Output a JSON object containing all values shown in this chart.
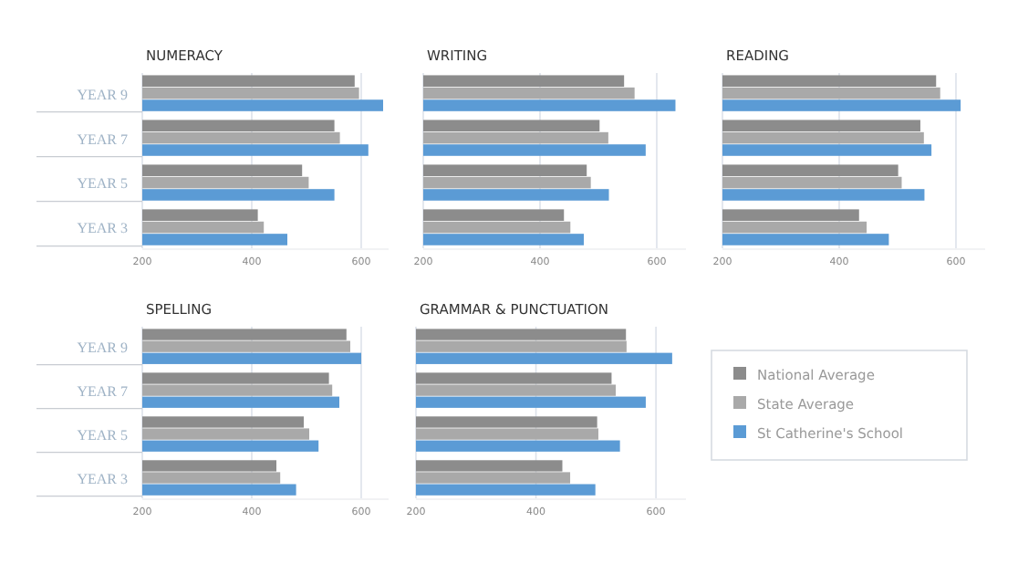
{
  "chart_data": [
    {
      "type": "bar",
      "orientation": "horizontal",
      "title": "NUMERACY",
      "categories": [
        "YEAR 9",
        "YEAR 7",
        "YEAR 5",
        "YEAR 3"
      ],
      "xlim": [
        200,
        650
      ],
      "xticks": [
        200,
        400,
        600
      ],
      "grid": "x",
      "series": [
        {
          "color": "#8c8c8c",
          "values": [
            588,
            551,
            492,
            411
          ]
        },
        {
          "color": "#a9a9a9",
          "values": [
            596,
            561,
            504,
            422
          ]
        },
        {
          "color": "#5b9bd5",
          "values": [
            640,
            613,
            551,
            465
          ]
        }
      ]
    },
    {
      "type": "bar",
      "orientation": "horizontal",
      "title": "WRITING",
      "categories": [
        null,
        null,
        null,
        null
      ],
      "xlim": [
        200,
        650
      ],
      "xticks": [
        200,
        400,
        600
      ],
      "grid": "x",
      "tick_labels": "x",
      "series": [
        {
          "color": "#8c8c8c",
          "values": [
            544,
            502,
            480,
            441
          ]
        },
        {
          "color": "#a9a9a9",
          "values": [
            562,
            517,
            487,
            452
          ]
        },
        {
          "color": "#5b9bd5",
          "values": [
            632,
            581,
            518,
            475
          ]
        }
      ]
    },
    {
      "type": "bar",
      "orientation": "horizontal",
      "title": "READING",
      "categories": [
        null,
        null,
        null,
        null
      ],
      "xlim": [
        200,
        650
      ],
      "xticks": [
        200,
        400,
        600
      ],
      "grid": "x",
      "tick_labels": "x",
      "series": [
        {
          "color": "#8c8c8c",
          "values": [
            566,
            539,
            501,
            434
          ]
        },
        {
          "color": "#a9a9a9",
          "values": [
            573,
            545,
            507,
            447
          ]
        },
        {
          "color": "#5b9bd5",
          "values": [
            608,
            558,
            546,
            485
          ]
        }
      ]
    },
    {
      "type": "bar",
      "orientation": "horizontal",
      "title": "SPELLING",
      "categories": [
        "YEAR 9",
        "YEAR 7",
        "YEAR 5",
        "YEAR 3"
      ],
      "xlim": [
        200,
        650
      ],
      "xticks": [
        200,
        400,
        600
      ],
      "grid": "x",
      "series": [
        {
          "color": "#8c8c8c",
          "values": [
            573,
            541,
            495,
            445
          ]
        },
        {
          "color": "#a9a9a9",
          "values": [
            580,
            547,
            505,
            452
          ]
        },
        {
          "color": "#5b9bd5",
          "values": [
            600,
            560,
            522,
            481
          ]
        }
      ]
    },
    {
      "type": "bar",
      "orientation": "horizontal",
      "title": "GRAMMAR & PUNCTUATION",
      "categories": [
        null,
        null,
        null,
        null
      ],
      "xlim": [
        200,
        650
      ],
      "xticks": [
        200,
        400,
        600
      ],
      "grid": "x",
      "tick_labels": "x",
      "legend": "right",
      "series": [
        {
          "name": "National Average",
          "color": "#8c8c8c",
          "values": [
            550,
            526,
            502,
            444
          ]
        },
        {
          "name": "State Average",
          "color": "#a9a9a9",
          "values": [
            551,
            533,
            504,
            457
          ]
        },
        {
          "name": "St Catherine's School",
          "color": "#5b9bd5",
          "values": [
            627,
            583,
            540,
            499
          ]
        }
      ]
    }
  ]
}
